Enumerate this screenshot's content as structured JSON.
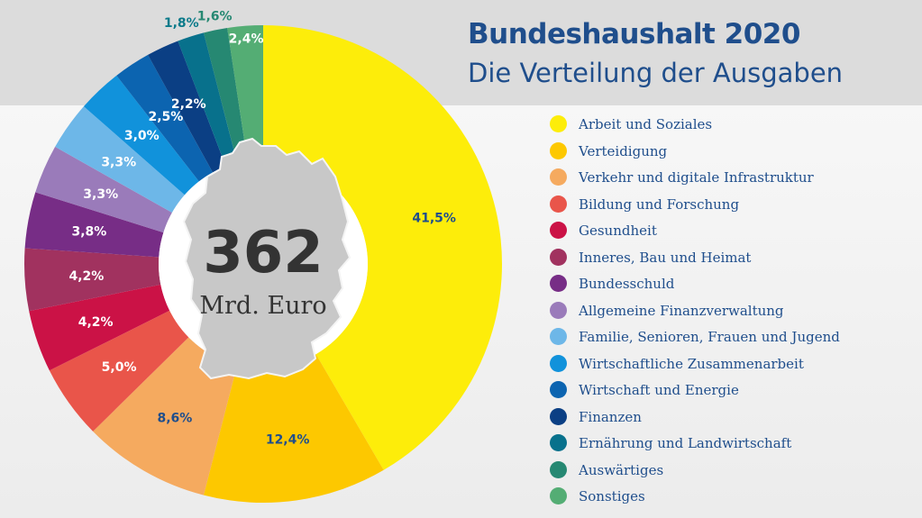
{
  "header": {
    "title": "Bundeshaushalt 2020",
    "subtitle": "Die Verteilung der Ausgaben"
  },
  "center": {
    "value": "362",
    "unit": "Mrd. Euro"
  },
  "chart_data": {
    "type": "pie",
    "style": "donut",
    "title": "Bundeshaushalt 2020",
    "subtitle": "Die Verteilung der Ausgaben",
    "total_label": "362 Mrd. Euro",
    "unit": "%",
    "legend_position": "right",
    "slices": [
      {
        "name": "Arbeit und Soziales",
        "value": 41.5,
        "label": "41,5%",
        "color": "#fded0a",
        "label_color": "#1f4e8c"
      },
      {
        "name": "Verteidigung",
        "value": 12.4,
        "label": "12,4%",
        "color": "#fdc800",
        "label_color": "#1f4e8c"
      },
      {
        "name": "Verkehr und digitale Infrastruktur",
        "value": 8.6,
        "label": "8,6%",
        "color": "#f5aa5f",
        "label_color": "#1f4e8c"
      },
      {
        "name": "Bildung und Forschung",
        "value": 5.0,
        "label": "5,0%",
        "color": "#e9554a",
        "label_color": "#ffffff"
      },
      {
        "name": "Gesundheit",
        "value": 4.2,
        "label": "4,2%",
        "color": "#cb1246",
        "label_color": "#ffffff"
      },
      {
        "name": "Inneres, Bau und Heimat",
        "value": 4.2,
        "label": "4,2%",
        "color": "#a1325f",
        "label_color": "#ffffff"
      },
      {
        "name": "Bundesschuld",
        "value": 3.8,
        "label": "3,8%",
        "color": "#772d86",
        "label_color": "#ffffff"
      },
      {
        "name": "Allgemeine Finanzverwaltung",
        "value": 3.3,
        "label": "3,3%",
        "color": "#9a7bba",
        "label_color": "#ffffff"
      },
      {
        "name": "Familie, Senioren, Frauen und Jugend",
        "value": 3.3,
        "label": "3,3%",
        "color": "#6db7e8",
        "label_color": "#ffffff"
      },
      {
        "name": "Wirtschaftliche Zusammenarbeit",
        "value": 3.0,
        "label": "3,0%",
        "color": "#1192db",
        "label_color": "#ffffff"
      },
      {
        "name": "Wirtschaft und Energie",
        "value": 2.5,
        "label": "2,5%",
        "color": "#0c64b0",
        "label_color": "#ffffff"
      },
      {
        "name": "Finanzen",
        "value": 2.2,
        "label": "2,2%",
        "color": "#0b3f84",
        "label_color": "#ffffff"
      },
      {
        "name": "Ernährung und Landwirtschaft",
        "value": 1.8,
        "label": "1,8%",
        "color": "#08718c",
        "label_color": "#0b7a8a"
      },
      {
        "name": "Auswärtiges",
        "value": 1.6,
        "label": "1,6%",
        "color": "#268872",
        "label_color": "#268872"
      },
      {
        "name": "Sonstiges",
        "value": 2.4,
        "label": "2,4%",
        "color": "#54ad74",
        "label_color": "#ffffff"
      }
    ]
  }
}
